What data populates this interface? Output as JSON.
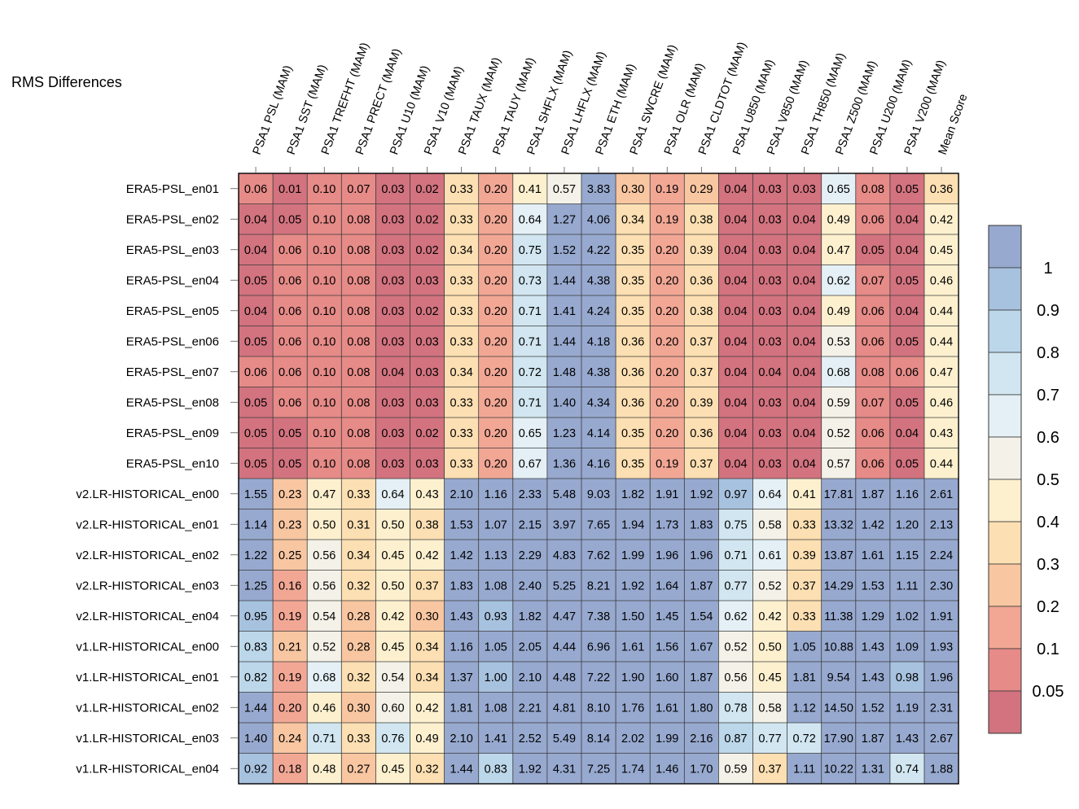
{
  "chart_data": {
    "type": "heatmap",
    "title": "RMS Differences",
    "columns": [
      "PSA1 PSL (MAM)",
      "PSA1 SST (MAM)",
      "PSA1 TREFHT (MAM)",
      "PSA1 PRECT (MAM)",
      "PSA1 U10 (MAM)",
      "PSA1 V10 (MAM)",
      "PSA1 TAUX (MAM)",
      "PSA1 TAUY (MAM)",
      "PSA1 SHFLX (MAM)",
      "PSA1 LHFLX (MAM)",
      "PSA1 ETH (MAM)",
      "PSA1 SWCRE (MAM)",
      "PSA1 OLR (MAM)",
      "PSA1 CLDTOT (MAM)",
      "PSA1 U850 (MAM)",
      "PSA1 V850 (MAM)",
      "PSA1 TH850 (MAM)",
      "PSA1 Z500 (MAM)",
      "PSA1 U200 (MAM)",
      "PSA1 V200 (MAM)",
      "Mean Score"
    ],
    "rows": [
      "ERA5-PSL_en01",
      "ERA5-PSL_en02",
      "ERA5-PSL_en03",
      "ERA5-PSL_en04",
      "ERA5-PSL_en05",
      "ERA5-PSL_en06",
      "ERA5-PSL_en07",
      "ERA5-PSL_en08",
      "ERA5-PSL_en09",
      "ERA5-PSL_en10",
      "v2.LR-HISTORICAL_en00",
      "v2.LR-HISTORICAL_en01",
      "v2.LR-HISTORICAL_en02",
      "v2.LR-HISTORICAL_en03",
      "v2.LR-HISTORICAL_en04",
      "v1.LR-HISTORICAL_en00",
      "v1.LR-HISTORICAL_en01",
      "v1.LR-HISTORICAL_en02",
      "v1.LR-HISTORICAL_en03",
      "v1.LR-HISTORICAL_en04"
    ],
    "values": [
      [
        "0.06",
        "0.01",
        "0.10",
        "0.07",
        "0.03",
        "0.02",
        "0.33",
        "0.20",
        "0.41",
        "0.57",
        "3.83",
        "0.30",
        "0.19",
        "0.29",
        "0.04",
        "0.03",
        "0.03",
        "0.65",
        "0.08",
        "0.05",
        "0.36"
      ],
      [
        "0.04",
        "0.05",
        "0.10",
        "0.08",
        "0.03",
        "0.02",
        "0.33",
        "0.20",
        "0.64",
        "1.27",
        "4.06",
        "0.34",
        "0.19",
        "0.38",
        "0.04",
        "0.03",
        "0.04",
        "0.49",
        "0.06",
        "0.04",
        "0.42"
      ],
      [
        "0.04",
        "0.06",
        "0.10",
        "0.08",
        "0.03",
        "0.02",
        "0.34",
        "0.20",
        "0.75",
        "1.52",
        "4.22",
        "0.35",
        "0.20",
        "0.39",
        "0.04",
        "0.03",
        "0.04",
        "0.47",
        "0.05",
        "0.04",
        "0.45"
      ],
      [
        "0.05",
        "0.06",
        "0.10",
        "0.08",
        "0.03",
        "0.03",
        "0.33",
        "0.20",
        "0.73",
        "1.44",
        "4.38",
        "0.35",
        "0.20",
        "0.36",
        "0.04",
        "0.03",
        "0.04",
        "0.62",
        "0.07",
        "0.05",
        "0.46"
      ],
      [
        "0.04",
        "0.06",
        "0.10",
        "0.08",
        "0.03",
        "0.02",
        "0.33",
        "0.20",
        "0.71",
        "1.41",
        "4.24",
        "0.35",
        "0.20",
        "0.38",
        "0.04",
        "0.03",
        "0.04",
        "0.49",
        "0.06",
        "0.04",
        "0.44"
      ],
      [
        "0.05",
        "0.06",
        "0.10",
        "0.08",
        "0.03",
        "0.03",
        "0.33",
        "0.20",
        "0.71",
        "1.44",
        "4.18",
        "0.36",
        "0.20",
        "0.37",
        "0.04",
        "0.03",
        "0.04",
        "0.53",
        "0.06",
        "0.05",
        "0.44"
      ],
      [
        "0.06",
        "0.06",
        "0.10",
        "0.08",
        "0.04",
        "0.03",
        "0.34",
        "0.20",
        "0.72",
        "1.48",
        "4.38",
        "0.36",
        "0.20",
        "0.37",
        "0.04",
        "0.04",
        "0.04",
        "0.68",
        "0.08",
        "0.06",
        "0.47"
      ],
      [
        "0.05",
        "0.06",
        "0.10",
        "0.08",
        "0.03",
        "0.03",
        "0.33",
        "0.20",
        "0.71",
        "1.40",
        "4.34",
        "0.36",
        "0.20",
        "0.39",
        "0.04",
        "0.03",
        "0.04",
        "0.59",
        "0.07",
        "0.05",
        "0.46"
      ],
      [
        "0.05",
        "0.05",
        "0.10",
        "0.08",
        "0.03",
        "0.02",
        "0.33",
        "0.20",
        "0.65",
        "1.23",
        "4.14",
        "0.35",
        "0.20",
        "0.36",
        "0.04",
        "0.03",
        "0.04",
        "0.52",
        "0.06",
        "0.04",
        "0.43"
      ],
      [
        "0.05",
        "0.05",
        "0.10",
        "0.08",
        "0.03",
        "0.03",
        "0.33",
        "0.20",
        "0.67",
        "1.36",
        "4.16",
        "0.35",
        "0.19",
        "0.37",
        "0.04",
        "0.03",
        "0.04",
        "0.57",
        "0.06",
        "0.05",
        "0.44"
      ],
      [
        "1.55",
        "0.23",
        "0.47",
        "0.33",
        "0.64",
        "0.43",
        "2.10",
        "1.16",
        "2.33",
        "5.48",
        "9.03",
        "1.82",
        "1.91",
        "1.92",
        "0.97",
        "0.64",
        "0.41",
        "17.81",
        "1.87",
        "1.16",
        "2.61"
      ],
      [
        "1.14",
        "0.23",
        "0.50",
        "0.31",
        "0.50",
        "0.38",
        "1.53",
        "1.07",
        "2.15",
        "3.97",
        "7.65",
        "1.94",
        "1.73",
        "1.83",
        "0.75",
        "0.58",
        "0.33",
        "13.32",
        "1.42",
        "1.20",
        "2.13"
      ],
      [
        "1.22",
        "0.25",
        "0.56",
        "0.34",
        "0.45",
        "0.42",
        "1.42",
        "1.13",
        "2.29",
        "4.83",
        "7.62",
        "1.99",
        "1.96",
        "1.96",
        "0.71",
        "0.61",
        "0.39",
        "13.87",
        "1.61",
        "1.15",
        "2.24"
      ],
      [
        "1.25",
        "0.16",
        "0.56",
        "0.32",
        "0.50",
        "0.37",
        "1.83",
        "1.08",
        "2.40",
        "5.25",
        "8.21",
        "1.92",
        "1.64",
        "1.87",
        "0.77",
        "0.52",
        "0.37",
        "14.29",
        "1.53",
        "1.11",
        "2.30"
      ],
      [
        "0.95",
        "0.19",
        "0.54",
        "0.28",
        "0.42",
        "0.30",
        "1.43",
        "0.93",
        "1.82",
        "4.47",
        "7.38",
        "1.50",
        "1.45",
        "1.54",
        "0.62",
        "0.42",
        "0.33",
        "11.38",
        "1.29",
        "1.02",
        "1.91"
      ],
      [
        "0.83",
        "0.21",
        "0.52",
        "0.28",
        "0.45",
        "0.34",
        "1.16",
        "1.05",
        "2.05",
        "4.44",
        "6.96",
        "1.61",
        "1.56",
        "1.67",
        "0.52",
        "0.50",
        "1.05",
        "10.88",
        "1.43",
        "1.09",
        "1.93"
      ],
      [
        "0.82",
        "0.19",
        "0.68",
        "0.32",
        "0.54",
        "0.34",
        "1.37",
        "1.00",
        "2.10",
        "4.48",
        "7.22",
        "1.90",
        "1.60",
        "1.87",
        "0.56",
        "0.45",
        "1.81",
        "9.54",
        "1.43",
        "0.98",
        "1.96"
      ],
      [
        "1.44",
        "0.20",
        "0.46",
        "0.30",
        "0.60",
        "0.42",
        "1.81",
        "1.08",
        "2.21",
        "4.81",
        "8.10",
        "1.76",
        "1.61",
        "1.80",
        "0.78",
        "0.58",
        "1.12",
        "14.50",
        "1.52",
        "1.19",
        "2.31"
      ],
      [
        "1.40",
        "0.24",
        "0.71",
        "0.33",
        "0.76",
        "0.49",
        "2.10",
        "1.41",
        "2.52",
        "5.49",
        "8.14",
        "2.02",
        "1.99",
        "2.16",
        "0.87",
        "0.77",
        "0.72",
        "17.90",
        "1.87",
        "1.43",
        "2.67"
      ],
      [
        "0.92",
        "0.18",
        "0.48",
        "0.27",
        "0.45",
        "0.32",
        "1.44",
        "0.83",
        "1.92",
        "4.31",
        "7.25",
        "1.74",
        "1.46",
        "1.70",
        "0.59",
        "0.37",
        "1.11",
        "10.22",
        "1.31",
        "0.74",
        "1.88"
      ]
    ],
    "colorbar": {
      "labels": [
        "1",
        "0.9",
        "0.8",
        "0.7",
        "0.6",
        "0.5",
        "0.4",
        "0.3",
        "0.2",
        "0.1",
        "0.05"
      ],
      "colors": [
        "#97a9cf",
        "#a7c2df",
        "#bcd7ea",
        "#d1e6f0",
        "#e4f0f5",
        "#f4f2e8",
        "#fdf0cf",
        "#fcdfb2",
        "#f8c6a1",
        "#f2a795",
        "#e68b88",
        "#d2737f"
      ]
    }
  }
}
